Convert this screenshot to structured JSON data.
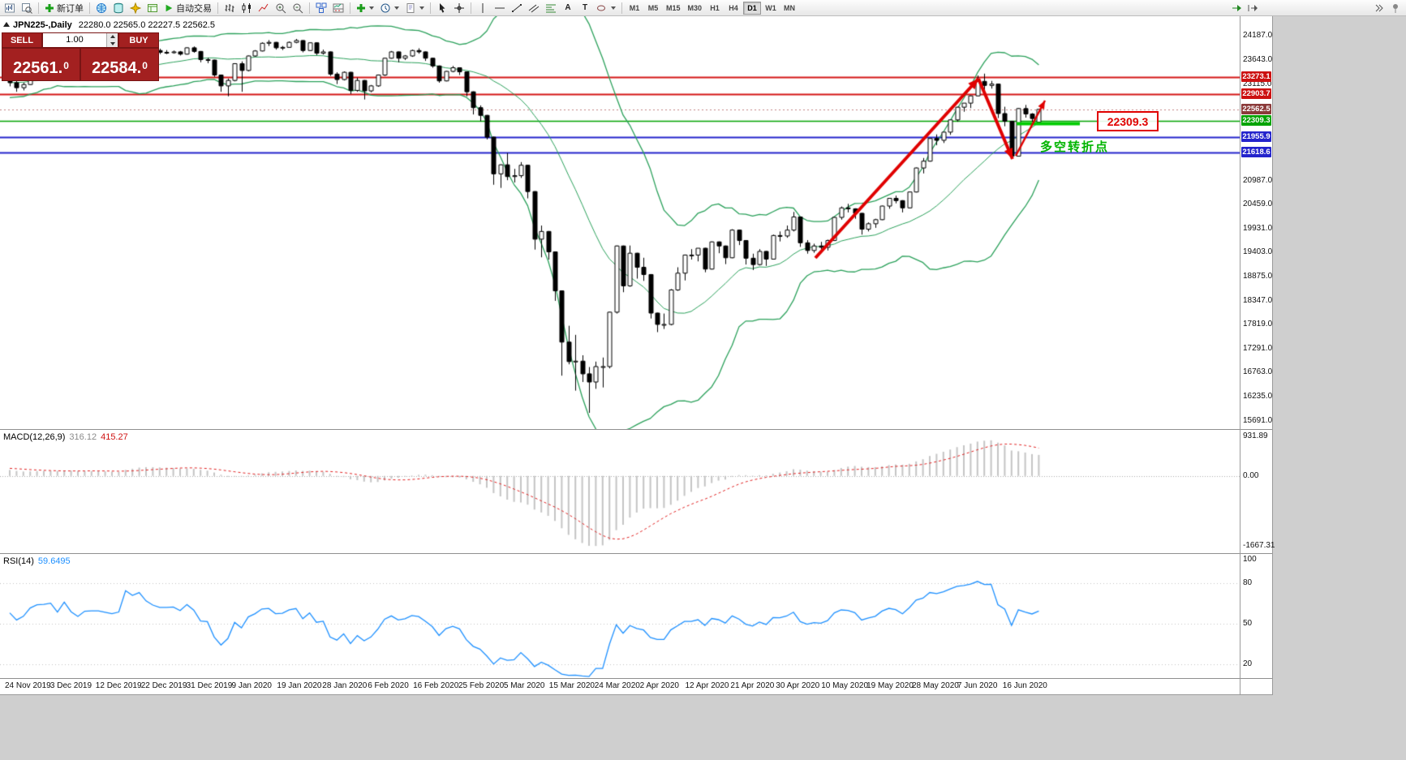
{
  "toolbar": {
    "new_order_label": "新订单",
    "auto_trading_label": "自动交易",
    "text_tool_label": "A",
    "label_tool_label": "T"
  },
  "timeframes": {
    "items": [
      "M1",
      "M5",
      "M15",
      "M30",
      "H1",
      "H4",
      "D1",
      "W1",
      "MN"
    ],
    "active": "D1"
  },
  "chart": {
    "symbol": "JPN225-,Daily",
    "ohlc": "22280.0 22565.0 22227.5 22562.5",
    "one_click": {
      "sell_label": "SELL",
      "buy_label": "BUY",
      "volume": "1.00",
      "sell_price_main": "22561.",
      "sell_price_sup": "0",
      "buy_price_main": "22584.",
      "buy_price_sup": "0"
    },
    "scale": {
      "price_top": 24187.0,
      "price_bottom": 15691.0
    },
    "y_labels": [
      "24187.0",
      "23643.0",
      "23115.0",
      "20987.0",
      "20459.0",
      "19931.0",
      "19403.0",
      "18875.0",
      "18347.0",
      "17819.0",
      "17291.0",
      "16763.0",
      "16235.0",
      "15691.0"
    ],
    "badges": [
      {
        "text": "23273.1",
        "price": 23273.1,
        "color": "#cc1111"
      },
      {
        "text": "22903.7",
        "price": 22903.7,
        "color": "#cc1111"
      },
      {
        "text": "22562.5",
        "price": 22562.5,
        "color": "#8b3a3a"
      },
      {
        "text": "22309.3",
        "price": 22309.3,
        "color": "#00a300"
      },
      {
        "text": "21955.9",
        "price": 21955.9,
        "color": "#2424cc"
      },
      {
        "text": "21618.6",
        "price": 21618.6,
        "color": "#2424cc"
      }
    ],
    "levels": [
      {
        "price": 23273.1,
        "color": "#d41616",
        "width": 2
      },
      {
        "price": 22903.7,
        "color": "#d41616",
        "width": 2
      },
      {
        "price": 22309.3,
        "color": "#00a300",
        "width": 1.5
      },
      {
        "price": 21955.9,
        "color": "#2424cc",
        "width": 2
      },
      {
        "price": 21618.6,
        "color": "#2424cc",
        "width": 2
      }
    ],
    "bid_price": 22562.5,
    "x_labels": [
      "24 Nov 2019",
      "3 Dec 2019",
      "12 Dec 2019",
      "22 Dec 2019",
      "31 Dec 2019",
      "9 Jan 2020",
      "19 Jan 2020",
      "28 Jan 2020",
      "6 Feb 2020",
      "16 Feb 2020",
      "25 Feb 2020",
      "5 Mar 2020",
      "15 Mar 2020",
      "24 Mar 2020",
      "2 Apr 2020",
      "12 Apr 2020",
      "21 Apr 2020",
      "30 Apr 2020",
      "10 May 2020",
      "19 May 2020",
      "28 May 2020",
      "7 Jun 2020",
      "16 Jun 2020"
    ],
    "annotation": {
      "price_label": "22309.3",
      "note": "多空转折点"
    }
  },
  "macd": {
    "title": "MACD(12,26,9)",
    "main_value": "316.12",
    "signal_value": "415.27",
    "scale_top": "931.89",
    "scale_zero": "0.00",
    "scale_bottom": "-1667.31"
  },
  "rsi": {
    "title": "RSI(14)",
    "value": "59.6495",
    "levels": [
      100,
      80,
      50,
      20
    ]
  },
  "chart_data": {
    "type": "candlestick",
    "visible_from": 26,
    "candles": [
      [
        22440,
        22520,
        22390,
        22500
      ],
      [
        22500,
        22640,
        22480,
        22620
      ],
      [
        22620,
        22650,
        22440,
        22490
      ],
      [
        22490,
        22580,
        22420,
        22550
      ],
      [
        22550,
        22600,
        22480,
        22550
      ],
      [
        22550,
        22780,
        22530,
        22750
      ],
      [
        22750,
        22850,
        22700,
        22800
      ],
      [
        22800,
        22990,
        22780,
        22970
      ],
      [
        22970,
        23040,
        22920,
        23000
      ],
      [
        23000,
        23020,
        22800,
        22850
      ],
      [
        22850,
        22960,
        22800,
        22930
      ],
      [
        22930,
        22950,
        22790,
        22850
      ],
      [
        22850,
        23060,
        22830,
        23040
      ],
      [
        23040,
        23080,
        22920,
        22970
      ],
      [
        22970,
        23260,
        22950,
        23250
      ],
      [
        23250,
        23330,
        23190,
        23290
      ],
      [
        23290,
        23360,
        23240,
        23330
      ],
      [
        23330,
        23340,
        23190,
        23250
      ],
      [
        23250,
        23320,
        23180,
        23300
      ],
      [
        23300,
        23360,
        23250,
        23330
      ],
      [
        23330,
        23350,
        23260,
        23320
      ],
      [
        23320,
        23340,
        23200,
        23280
      ],
      [
        23280,
        23330,
        23230,
        23300
      ],
      [
        23300,
        23310,
        23100,
        23150
      ],
      [
        23150,
        23240,
        23080,
        23200
      ],
      [
        23200,
        23310,
        23150,
        23280
      ],
      [
        23280,
        23350,
        23070,
        23150
      ],
      [
        23150,
        23200,
        22950,
        23040
      ],
      [
        23040,
        23150,
        22980,
        23110
      ],
      [
        23110,
        23320,
        23100,
        23290
      ],
      [
        23290,
        23420,
        23270,
        23370
      ],
      [
        23370,
        23430,
        23300,
        23380
      ],
      [
        23380,
        23450,
        23350,
        23410
      ],
      [
        23410,
        23440,
        23250,
        23290
      ],
      [
        23290,
        23560,
        23280,
        23530
      ],
      [
        23530,
        23550,
        23330,
        23380
      ],
      [
        23380,
        23400,
        23250,
        23300
      ],
      [
        23300,
        23450,
        23290,
        23420
      ],
      [
        23420,
        23470,
        23350,
        23430
      ],
      [
        23430,
        23480,
        23380,
        23430
      ],
      [
        23430,
        23450,
        23340,
        23410
      ],
      [
        23410,
        23440,
        23350,
        23390
      ],
      [
        23390,
        23470,
        23360,
        23420
      ],
      [
        23420,
        24050,
        23420,
        24020
      ],
      [
        24020,
        24060,
        23900,
        23950
      ],
      [
        23950,
        24090,
        23930,
        24060
      ],
      [
        24060,
        24070,
        23900,
        23930
      ],
      [
        23930,
        23950,
        23820,
        23860
      ],
      [
        23860,
        23900,
        23780,
        23820
      ],
      [
        23820,
        23870,
        23780,
        23820
      ],
      [
        23820,
        23860,
        23790,
        23830
      ],
      [
        23830,
        23850,
        23750,
        23780
      ],
      [
        23780,
        23930,
        23770,
        23920
      ],
      [
        23920,
        23950,
        23810,
        23840
      ],
      [
        23840,
        23850,
        23600,
        23660
      ],
      [
        23660,
        23700,
        23580,
        23650
      ],
      [
        23650,
        23660,
        23280,
        23320
      ],
      [
        23320,
        23330,
        22950,
        23080
      ],
      [
        23080,
        23240,
        22850,
        23200
      ],
      [
        23200,
        23580,
        23180,
        23570
      ],
      [
        23570,
        23620,
        22950,
        23420
      ],
      [
        23420,
        23750,
        23400,
        23740
      ],
      [
        23740,
        23870,
        23720,
        23850
      ],
      [
        23850,
        24040,
        23840,
        24020
      ],
      [
        24020,
        24090,
        23960,
        24040
      ],
      [
        24040,
        24050,
        23880,
        23920
      ],
      [
        23920,
        23960,
        23870,
        23930
      ],
      [
        23930,
        24060,
        23920,
        24040
      ],
      [
        24040,
        24115,
        24020,
        24080
      ],
      [
        24080,
        24090,
        23820,
        23860
      ],
      [
        23860,
        24040,
        23850,
        24030
      ],
      [
        24030,
        24040,
        23760,
        23800
      ],
      [
        23800,
        23880,
        23770,
        23830
      ],
      [
        23830,
        23840,
        23300,
        23340
      ],
      [
        23340,
        23380,
        23120,
        23220
      ],
      [
        23220,
        23400,
        23200,
        23380
      ],
      [
        23380,
        23390,
        22900,
        22980
      ],
      [
        22980,
        23260,
        22950,
        23200
      ],
      [
        23200,
        23210,
        22780,
        22970
      ],
      [
        22970,
        23100,
        22940,
        23080
      ],
      [
        23080,
        23330,
        23060,
        23320
      ],
      [
        23320,
        23700,
        23300,
        23690
      ],
      [
        23690,
        23850,
        23680,
        23830
      ],
      [
        23830,
        23840,
        23600,
        23690
      ],
      [
        23690,
        23760,
        23650,
        23740
      ],
      [
        23740,
        23880,
        23720,
        23860
      ],
      [
        23860,
        23910,
        23790,
        23830
      ],
      [
        23830,
        23840,
        23630,
        23690
      ],
      [
        23690,
        23700,
        23480,
        23520
      ],
      [
        23520,
        23530,
        23150,
        23190
      ],
      [
        23190,
        23410,
        23180,
        23400
      ],
      [
        23400,
        23520,
        23380,
        23480
      ],
      [
        23480,
        23490,
        23320,
        23390
      ],
      [
        23390,
        23400,
        22850,
        22950
      ],
      [
        22950,
        22960,
        22450,
        22600
      ],
      [
        22600,
        22650,
        22300,
        22430
      ],
      [
        22430,
        22440,
        21900,
        21950
      ],
      [
        21950,
        21960,
        20900,
        21140
      ],
      [
        21140,
        21350,
        20830,
        21340
      ],
      [
        21340,
        21600,
        21000,
        21080
      ],
      [
        21080,
        21250,
        20950,
        21100
      ],
      [
        21100,
        21400,
        21050,
        21330
      ],
      [
        21330,
        21340,
        20600,
        20750
      ],
      [
        20750,
        20760,
        19470,
        19700
      ],
      [
        19700,
        20000,
        19300,
        19870
      ],
      [
        19870,
        19880,
        19250,
        19420
      ],
      [
        19420,
        19430,
        18340,
        18560
      ],
      [
        18560,
        18570,
        16690,
        17430
      ],
      [
        17430,
        17790,
        16940,
        17000
      ],
      [
        17000,
        17590,
        16360,
        17010
      ],
      [
        17010,
        17140,
        16550,
        16730
      ],
      [
        16730,
        16880,
        15870,
        16550
      ],
      [
        16550,
        17000,
        16400,
        16890
      ],
      [
        16890,
        17090,
        16430,
        16890
      ],
      [
        16890,
        18100,
        16850,
        18090
      ],
      [
        18090,
        19560,
        18060,
        19550
      ],
      [
        19550,
        19560,
        18530,
        18670
      ],
      [
        18670,
        19560,
        18650,
        19390
      ],
      [
        19390,
        19400,
        18830,
        19080
      ],
      [
        19080,
        19290,
        18780,
        18920
      ],
      [
        18920,
        18930,
        17950,
        18070
      ],
      [
        18070,
        18080,
        17650,
        17820
      ],
      [
        17820,
        18060,
        17720,
        17820
      ],
      [
        17820,
        18600,
        17800,
        18580
      ],
      [
        18580,
        19080,
        18560,
        18950
      ],
      [
        18950,
        19360,
        18790,
        19350
      ],
      [
        19350,
        19480,
        19250,
        19350
      ],
      [
        19350,
        19500,
        19210,
        19500
      ],
      [
        19500,
        19510,
        18970,
        19040
      ],
      [
        19040,
        19650,
        19030,
        19640
      ],
      [
        19640,
        19650,
        19390,
        19550
      ],
      [
        19550,
        19560,
        19150,
        19290
      ],
      [
        19290,
        19920,
        19280,
        19900
      ],
      [
        19900,
        19910,
        19570,
        19670
      ],
      [
        19670,
        19680,
        19140,
        19280
      ],
      [
        19280,
        19380,
        19020,
        19140
      ],
      [
        19140,
        19480,
        19120,
        19430
      ],
      [
        19430,
        19440,
        19110,
        19260
      ],
      [
        19260,
        19800,
        19250,
        19780
      ],
      [
        19780,
        19870,
        19650,
        19770
      ],
      [
        19770,
        20000,
        19730,
        19900
      ],
      [
        19900,
        20300,
        19870,
        20190
      ],
      [
        20190,
        20200,
        19530,
        19620
      ],
      [
        19620,
        19680,
        19380,
        19450
      ],
      [
        19450,
        19600,
        19400,
        19550
      ],
      [
        19550,
        19640,
        19430,
        19520
      ],
      [
        19520,
        19690,
        19450,
        19670
      ],
      [
        19670,
        20190,
        19660,
        20180
      ],
      [
        20180,
        20420,
        20130,
        20390
      ],
      [
        20390,
        20480,
        20290,
        20370
      ],
      [
        20370,
        20380,
        20150,
        20270
      ],
      [
        20270,
        20280,
        19800,
        19920
      ],
      [
        19920,
        20070,
        19870,
        20040
      ],
      [
        20040,
        20150,
        19950,
        20130
      ],
      [
        20130,
        20440,
        20120,
        20430
      ],
      [
        20430,
        20600,
        20370,
        20600
      ],
      [
        20600,
        20660,
        20490,
        20550
      ],
      [
        20550,
        20560,
        20290,
        20390
      ],
      [
        20390,
        20750,
        20380,
        20740
      ],
      [
        20740,
        21280,
        20730,
        21270
      ],
      [
        21270,
        21490,
        21150,
        21420
      ],
      [
        21420,
        21920,
        21410,
        21920
      ],
      [
        21920,
        22010,
        21770,
        21880
      ],
      [
        21880,
        22070,
        21820,
        22060
      ],
      [
        22060,
        22330,
        22000,
        22330
      ],
      [
        22330,
        22620,
        22290,
        22610
      ],
      [
        22610,
        22700,
        22510,
        22700
      ],
      [
        22700,
        22870,
        22590,
        22860
      ],
      [
        22860,
        23310,
        22850,
        23180
      ],
      [
        23180,
        23350,
        22960,
        23090
      ],
      [
        23090,
        23190,
        23020,
        23120
      ],
      [
        23120,
        23130,
        22370,
        22470
      ],
      [
        22470,
        22620,
        22190,
        22300
      ],
      [
        22300,
        22310,
        21520,
        21530
      ],
      [
        21530,
        22590,
        21530,
        22580
      ],
      [
        22580,
        22660,
        22380,
        22460
      ],
      [
        22460,
        22480,
        22290,
        22360
      ],
      [
        22280,
        22565,
        22227.5,
        22562.5
      ]
    ]
  }
}
